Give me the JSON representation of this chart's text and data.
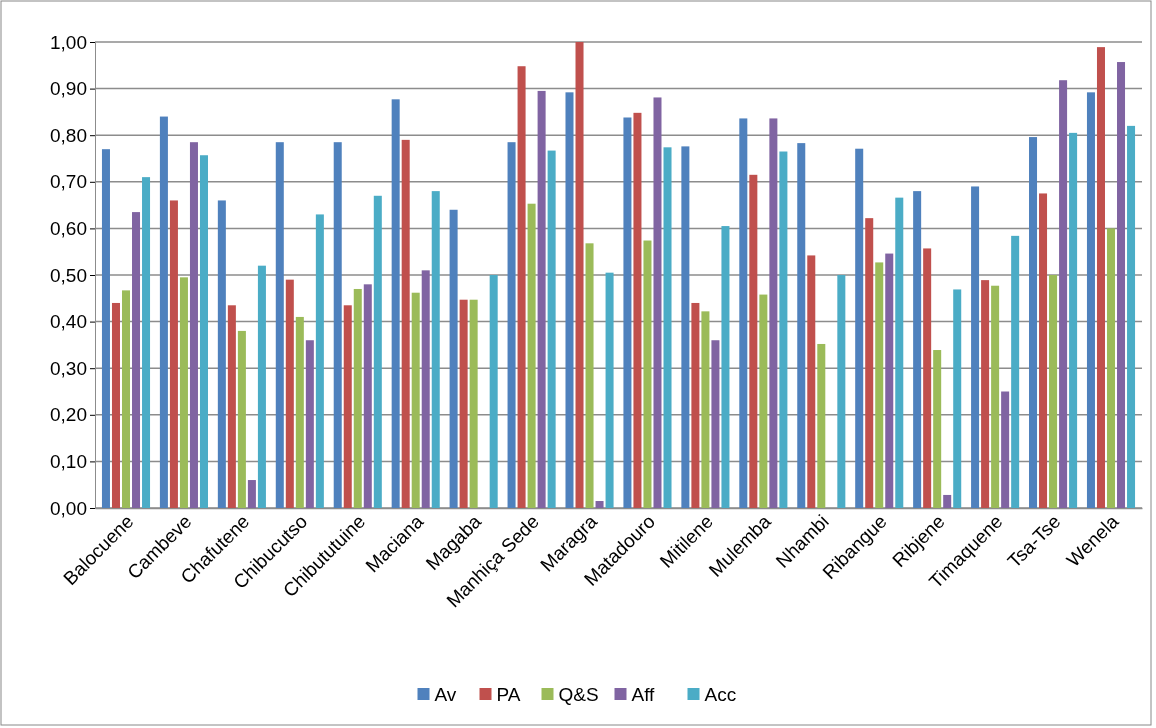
{
  "chart_data": {
    "type": "bar",
    "categories": [
      "Balocuene",
      "Cambeve",
      "Chafutene",
      "Chibucutso",
      "Chibututuine",
      "Maciana",
      "Magaba",
      "Manhiça Sede",
      "Maragra",
      "Matadouro",
      "Mitilene",
      "Mulemba",
      "Nhambi",
      "Ribangue",
      "Ribjene",
      "Timaquene",
      "Tsa-Tse",
      "Wenela"
    ],
    "series": [
      {
        "name": "Av",
        "color": "#4f81bd",
        "values": [
          0.77,
          0.84,
          0.66,
          0.785,
          0.785,
          0.877,
          0.64,
          0.785,
          0.892,
          0.838,
          0.776,
          0.836,
          0.783,
          0.771,
          0.68,
          0.69,
          0.796,
          0.892
        ]
      },
      {
        "name": "PA",
        "color": "#c0504d",
        "values": [
          0.44,
          0.66,
          0.435,
          0.49,
          0.435,
          0.79,
          0.447,
          0.948,
          1.0,
          0.848,
          0.44,
          0.715,
          0.542,
          0.622,
          0.557,
          0.489,
          0.675,
          0.989
        ]
      },
      {
        "name": "Q&S",
        "color": "#9bbb59",
        "values": [
          0.467,
          0.495,
          0.38,
          0.41,
          0.47,
          0.462,
          0.447,
          0.653,
          0.568,
          0.574,
          0.422,
          0.458,
          0.352,
          0.527,
          0.339,
          0.477,
          0.5,
          0.6
        ]
      },
      {
        "name": "Aff",
        "color": "#8064a2",
        "values": [
          0.635,
          0.785,
          0.06,
          0.36,
          0.48,
          0.51,
          null,
          0.895,
          0.015,
          0.881,
          0.36,
          0.836,
          null,
          0.546,
          0.028,
          0.25,
          0.918,
          0.957
        ]
      },
      {
        "name": "Acc",
        "color": "#4bacc6",
        "values": [
          0.71,
          0.757,
          0.52,
          0.63,
          0.67,
          0.68,
          0.5,
          0.767,
          0.505,
          0.774,
          0.605,
          0.765,
          0.5,
          0.666,
          0.469,
          0.584,
          0.805,
          0.82
        ]
      }
    ],
    "ylim": [
      0,
      1
    ],
    "yticks": [
      {
        "value": 0,
        "label": "0,00"
      },
      {
        "value": 0.1,
        "label": "0,10"
      },
      {
        "value": 0.2,
        "label": "0,20"
      },
      {
        "value": 0.3,
        "label": "0,30"
      },
      {
        "value": 0.4,
        "label": "0,40"
      },
      {
        "value": 0.5,
        "label": "0,50"
      },
      {
        "value": 0.6,
        "label": "0,60"
      },
      {
        "value": 0.7,
        "label": "0,70"
      },
      {
        "value": 0.8,
        "label": "0,80"
      },
      {
        "value": 0.9,
        "label": "0,90"
      },
      {
        "value": 1,
        "label": "1,00"
      }
    ],
    "grid": "y",
    "legend": "bottom"
  }
}
